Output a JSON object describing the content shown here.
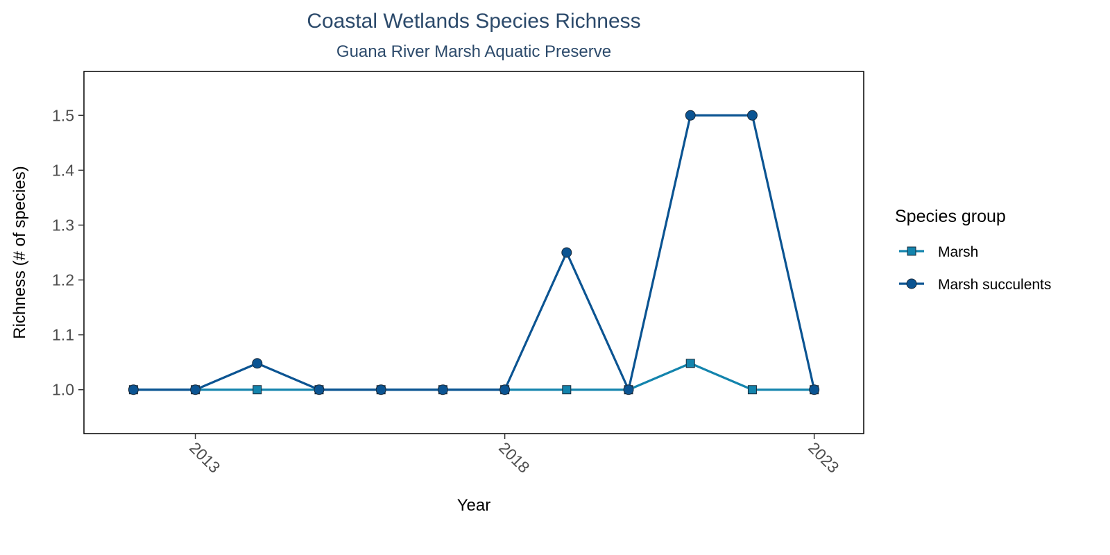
{
  "chart_data": {
    "type": "line",
    "title": "Coastal Wetlands Species Richness",
    "subtitle": "Guana River Marsh Aquatic Preserve",
    "xlabel": "Year",
    "ylabel": "Richness (# of species)",
    "x": [
      2012,
      2013,
      2014,
      2015,
      2016,
      2017,
      2018,
      2019,
      2020,
      2021,
      2022,
      2023
    ],
    "x_ticks": [
      2013,
      2018,
      2023
    ],
    "x_tick_labels": [
      "2013",
      "2018",
      "2023"
    ],
    "xlim": [
      2011.2,
      2023.8
    ],
    "y_ticks": [
      1.0,
      1.1,
      1.2,
      1.3,
      1.4,
      1.5
    ],
    "y_tick_labels": [
      "1.0",
      "1.1",
      "1.2",
      "1.3",
      "1.4",
      "1.5"
    ],
    "ylim": [
      0.92,
      1.58
    ],
    "grid": false,
    "legend_position": "right",
    "legend_title": "Species group",
    "series": [
      {
        "name": "Marsh",
        "color": "#1384ad",
        "marker": "square",
        "values": [
          1.0,
          1.0,
          1.0,
          1.0,
          1.0,
          1.0,
          1.0,
          1.0,
          1.0,
          1.048,
          1.0,
          1.0
        ]
      },
      {
        "name": "Marsh succulents",
        "color": "#0b5492",
        "marker": "circle",
        "values": [
          1.0,
          1.0,
          1.048,
          1.0,
          1.0,
          1.0,
          1.0,
          1.25,
          1.0,
          1.5,
          1.5,
          1.0
        ]
      }
    ]
  }
}
